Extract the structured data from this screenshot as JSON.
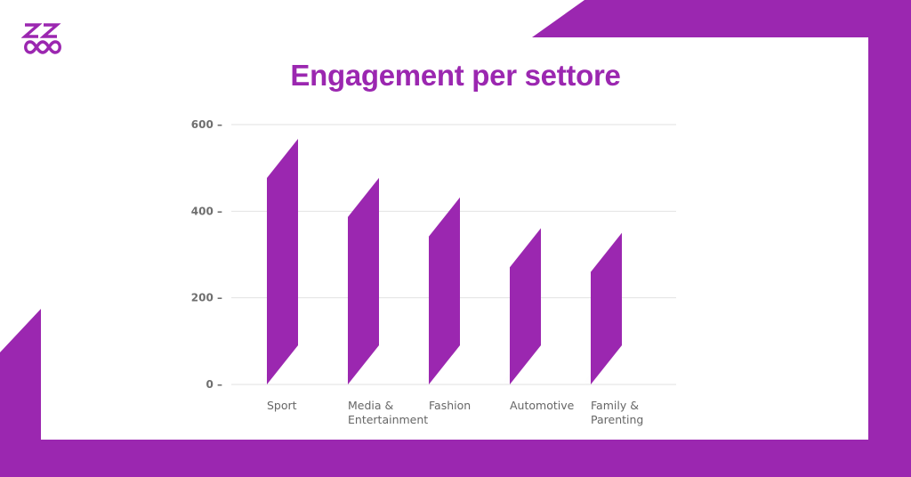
{
  "brand": {
    "accent": "#9b27b0",
    "logo_icon": "zoo-logo-icon"
  },
  "chart_data": {
    "type": "bar",
    "title": "Engagement per settore",
    "xlabel": "",
    "ylabel": "",
    "categories": [
      "Sport",
      "Media & Entertainment",
      "Fashion",
      "Automotive",
      "Family & Parenting"
    ],
    "category_lines": [
      [
        "Sport"
      ],
      [
        "Media &",
        "Entertainment"
      ],
      [
        "Fashion"
      ],
      [
        "Automotive"
      ],
      [
        "Family &",
        "Parenting"
      ]
    ],
    "values": [
      567,
      477,
      432,
      361,
      350
    ],
    "ylim": [
      0,
      600
    ],
    "yticks": [
      "0",
      "200",
      "400",
      "600"
    ],
    "grid": true,
    "bar_color": "#9b27b0"
  }
}
